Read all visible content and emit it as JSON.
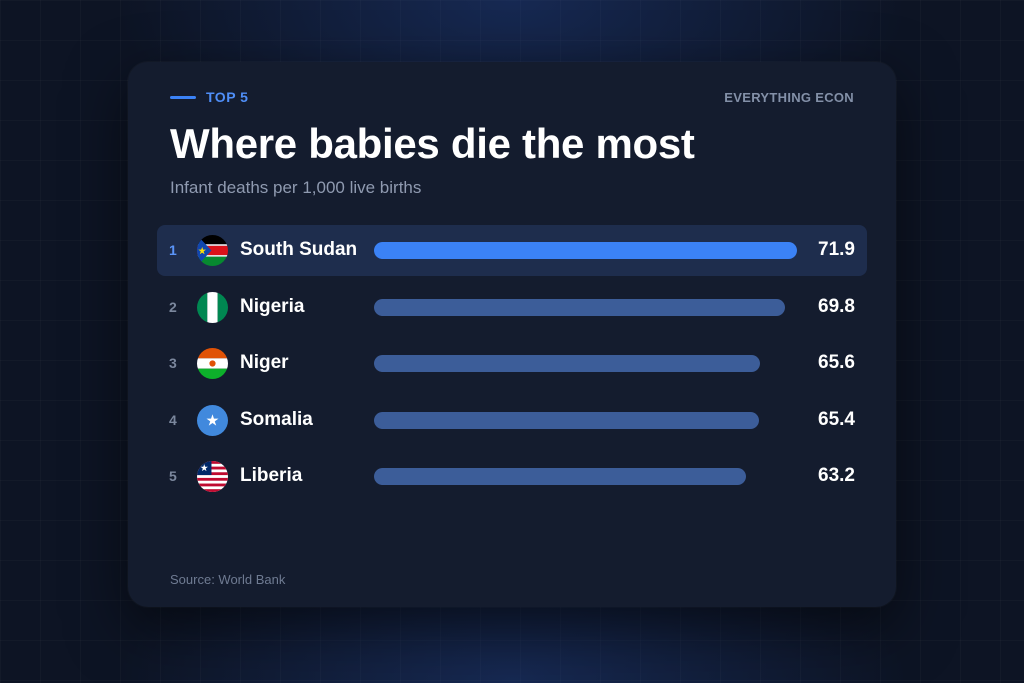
{
  "header": {
    "tag": "TOP 5",
    "brand": "EVERYTHING ECON"
  },
  "chart_data": {
    "type": "bar",
    "orientation": "horizontal",
    "title": "Where babies die the most",
    "subtitle": "Infant deaths per 1,000 live births",
    "categories": [
      "South Sudan",
      "Nigeria",
      "Niger",
      "Somalia",
      "Liberia"
    ],
    "ranks": [
      "1",
      "2",
      "3",
      "4",
      "5"
    ],
    "values": [
      71.9,
      69.8,
      65.6,
      65.4,
      63.2
    ],
    "value_labels": [
      "71.9",
      "69.8",
      "65.6",
      "65.4",
      "63.2"
    ],
    "xlim": [
      0,
      71.9
    ],
    "highlight_index": 0,
    "source": "Source: World Bank",
    "grid": false,
    "legend": "none"
  },
  "flags": [
    "south-sudan-flag-icon",
    "nigeria-flag-icon",
    "niger-flag-icon",
    "somalia-flag-icon",
    "liberia-flag-icon"
  ],
  "colors": {
    "background": "#0d1424",
    "card": "#141c2e",
    "highlight_row": "#1e2d4d",
    "accent_bar": "#3b82f6",
    "bar": "#3c5d99"
  }
}
